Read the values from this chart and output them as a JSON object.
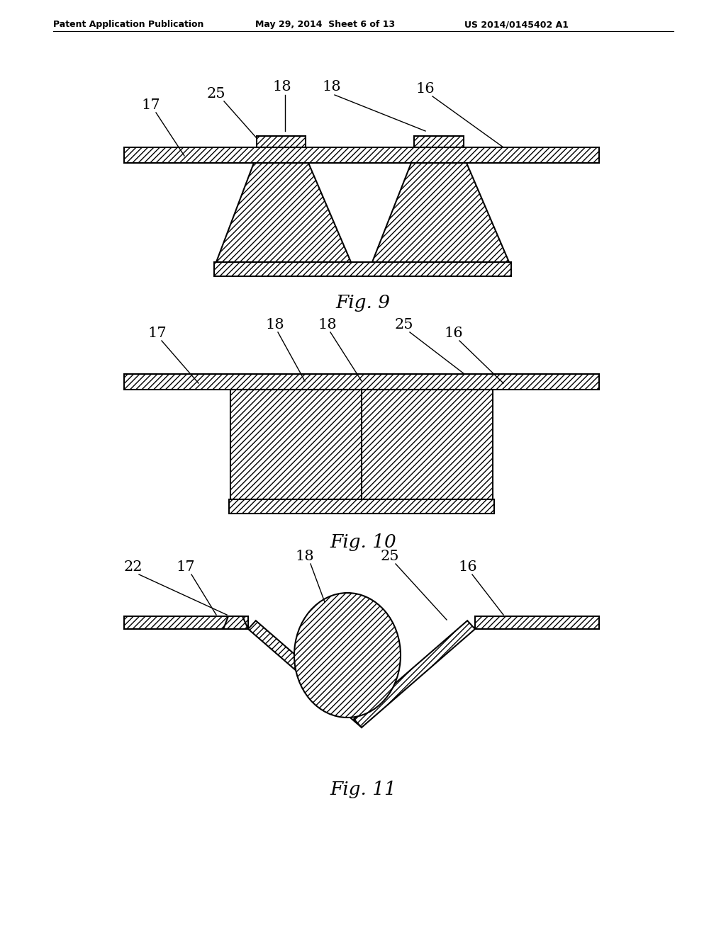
{
  "bg_color": "#ffffff",
  "header_left": "Patent Application Publication",
  "header_mid": "May 29, 2014  Sheet 6 of 13",
  "header_right": "US 2014/0145402 A1",
  "fig9_caption": "Fig. 9",
  "fig10_caption": "Fig. 10",
  "fig11_caption": "Fig. 11",
  "hatch_pattern": "////",
  "line_color": "#000000",
  "face_color": "#ffffff",
  "label_fontsize": 15,
  "caption_fontsize": 19
}
